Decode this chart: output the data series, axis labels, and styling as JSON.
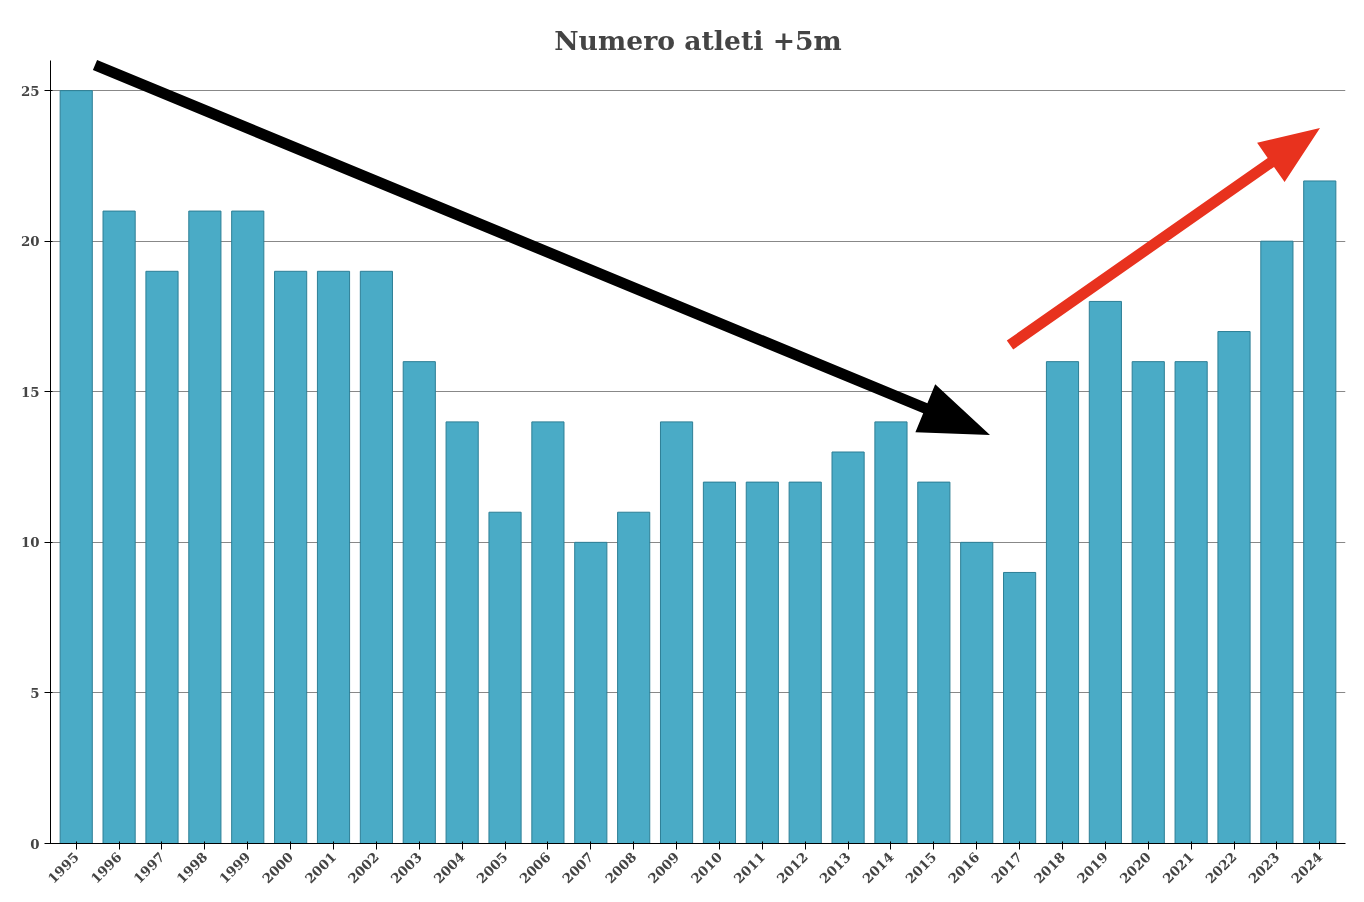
{
  "chart_data": {
    "type": "bar",
    "title": "Numero atleti +5m",
    "categories": [
      "1995",
      "1996",
      "1997",
      "1998",
      "1999",
      "2000",
      "2001",
      "2002",
      "2003",
      "2004",
      "2005",
      "2006",
      "2007",
      "2008",
      "2009",
      "2010",
      "2011",
      "2012",
      "2013",
      "2014",
      "2015",
      "2016",
      "2017",
      "2018",
      "2019",
      "2020",
      "2021",
      "2022",
      "2023",
      "2024"
    ],
    "values": [
      25,
      21,
      19,
      21,
      21,
      19,
      19,
      19,
      16,
      14,
      11,
      14,
      10,
      11,
      14,
      12,
      12,
      12,
      13,
      14,
      12,
      10,
      9,
      16,
      18,
      16,
      16,
      17,
      20,
      22
    ],
    "color": "#4aabc6",
    "ylim": [
      0,
      25
    ],
    "yticks": [
      0,
      5,
      10,
      15,
      20,
      25
    ],
    "grid": "y"
  }
}
